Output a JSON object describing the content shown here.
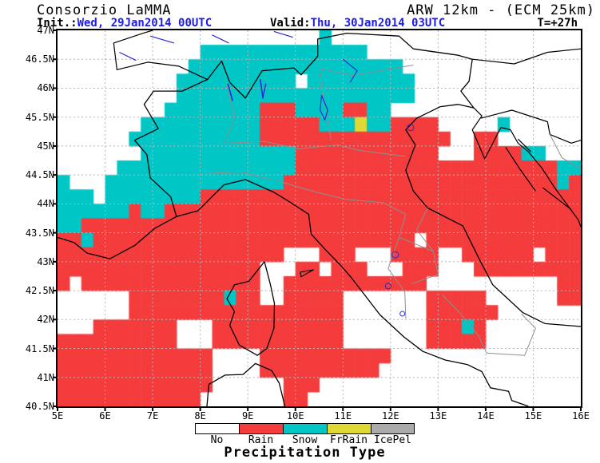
{
  "header": {
    "brand": "Consorzio LaMMA",
    "model": "ARW 12km - (ECM 25km)",
    "init_label": "Init.:",
    "init_value": "Wed, 29Jan2014 00UTC",
    "valid_label": "Valid:",
    "valid_value": "Thu, 30Jan2014 03UTC",
    "lead_time": "T=+27h"
  },
  "axes": {
    "lat_labels": [
      "47N",
      "46.5N",
      "46N",
      "45.5N",
      "45N",
      "44.5N",
      "44N",
      "43.5N",
      "43N",
      "42.5N",
      "42N",
      "41.5N",
      "41N",
      "40.5N"
    ],
    "lon_labels": [
      "5E",
      "6E",
      "7E",
      "8E",
      "9E",
      "10E",
      "11E",
      "12E",
      "13E",
      "14E",
      "15E",
      "16E"
    ],
    "lat_range": [
      40.5,
      47
    ],
    "lon_range": [
      5,
      16
    ]
  },
  "legend": {
    "title": "Precipitation Type",
    "items": [
      {
        "label": "No",
        "color": "#ffffff"
      },
      {
        "label": "Rain",
        "color": "#f43c3c"
      },
      {
        "label": "Snow",
        "color": "#00c6c6"
      },
      {
        "label": "FrRain",
        "color": "#e0d935"
      },
      {
        "label": "IcePel",
        "color": "#ababab"
      }
    ]
  },
  "colors": {
    "value_text": "#1b1bef",
    "grid_line": "#b5b5b5",
    "national_border": "#000000",
    "regional_border": "#8f8f8f",
    "water": "#2a2ad0"
  },
  "map": {
    "type": "precipitation-type-raster",
    "cell_legend": {
      ".": "No",
      "r": "Rain",
      "s": "Snow",
      "y": "FrRain",
      "g": "IcePel"
    },
    "palette": {
      ".": "#ffffff",
      "r": "#f43c3c",
      "s": "#00c6c6",
      "y": "#e0d935",
      "g": "#ababab"
    },
    "lon_range": [
      5,
      16
    ],
    "lat_range": [
      40.5,
      47
    ],
    "grid_rows": [
      "......................s.....................",
      "............ssssssssssssss..................",
      "...........ssssssssssssssssss...............",
      "..........ssssssssss.sssssssss..............",
      "..........ssssssssssssssssssss..............",
      ".........ssssssssrrrssssrrss................",
      ".......ssssssssssrrrrrsssyssrrrr.....s......",
      "......sssssssssssrrrrrrrrrrrrrrrr..rr.......",
      ".......sssssssssssssrrrrrrrrrrrr...rrrrss...",
      ".....sssssssssssssssrrrrrrrrrrrrrrrrrrrrrrss",
      "s...sssssssssssssssrrrrrrrrrrrrrrrrrrrrrrrsr",
      "sss.ssssssssrrrrrrrrrrrrrrrrrrrrrrrrrrrrrrrr",
      "ssssssrssrrrrrrrrrrrrrrrrrrrrrrrrrrrrrrrrrrr",
      "ssrrrrrrrrrrrrrrrrrrrrrrrrrrrrrrrrrrrrrrrrrr",
      "rrsrrrrrrrrrrrrrrrrrrrrrrrrrrr.rrrrrrrrrrrrr",
      "rrrrrrrrrrrrrrrrrrr...rrr...rrrr..rrrrrr.rrr",
      "rrrrrrrrrrrrrrrrr...rr.rrr...rrr...rrrrrrrrr",
      "r.rrrrrrrrrrrrrrr..rrrrrrrrrrrr...........rr",
      "......rrrrrrrrsrr..rrrrr.......rrrrr......rr",
      "......rrrrrrrrrrrrrrrrrr.......rrrrrr.......",
      "...rrrrrrr...rrrrrrrrrrr.......rrrsr........",
      "rrrrrrrrrr...rrrrrrrrrrr.......rrrrr........",
      "rrrrrrrrrrrrr....rrrrrrrrrrr................",
      "rrrrrrrrrrrrr....rrrrrrrrrr.................",
      "rrrrrrrrrrrrr......rrr......................",
      "rrrrrrrrrrrr.......rr......................."
    ]
  }
}
